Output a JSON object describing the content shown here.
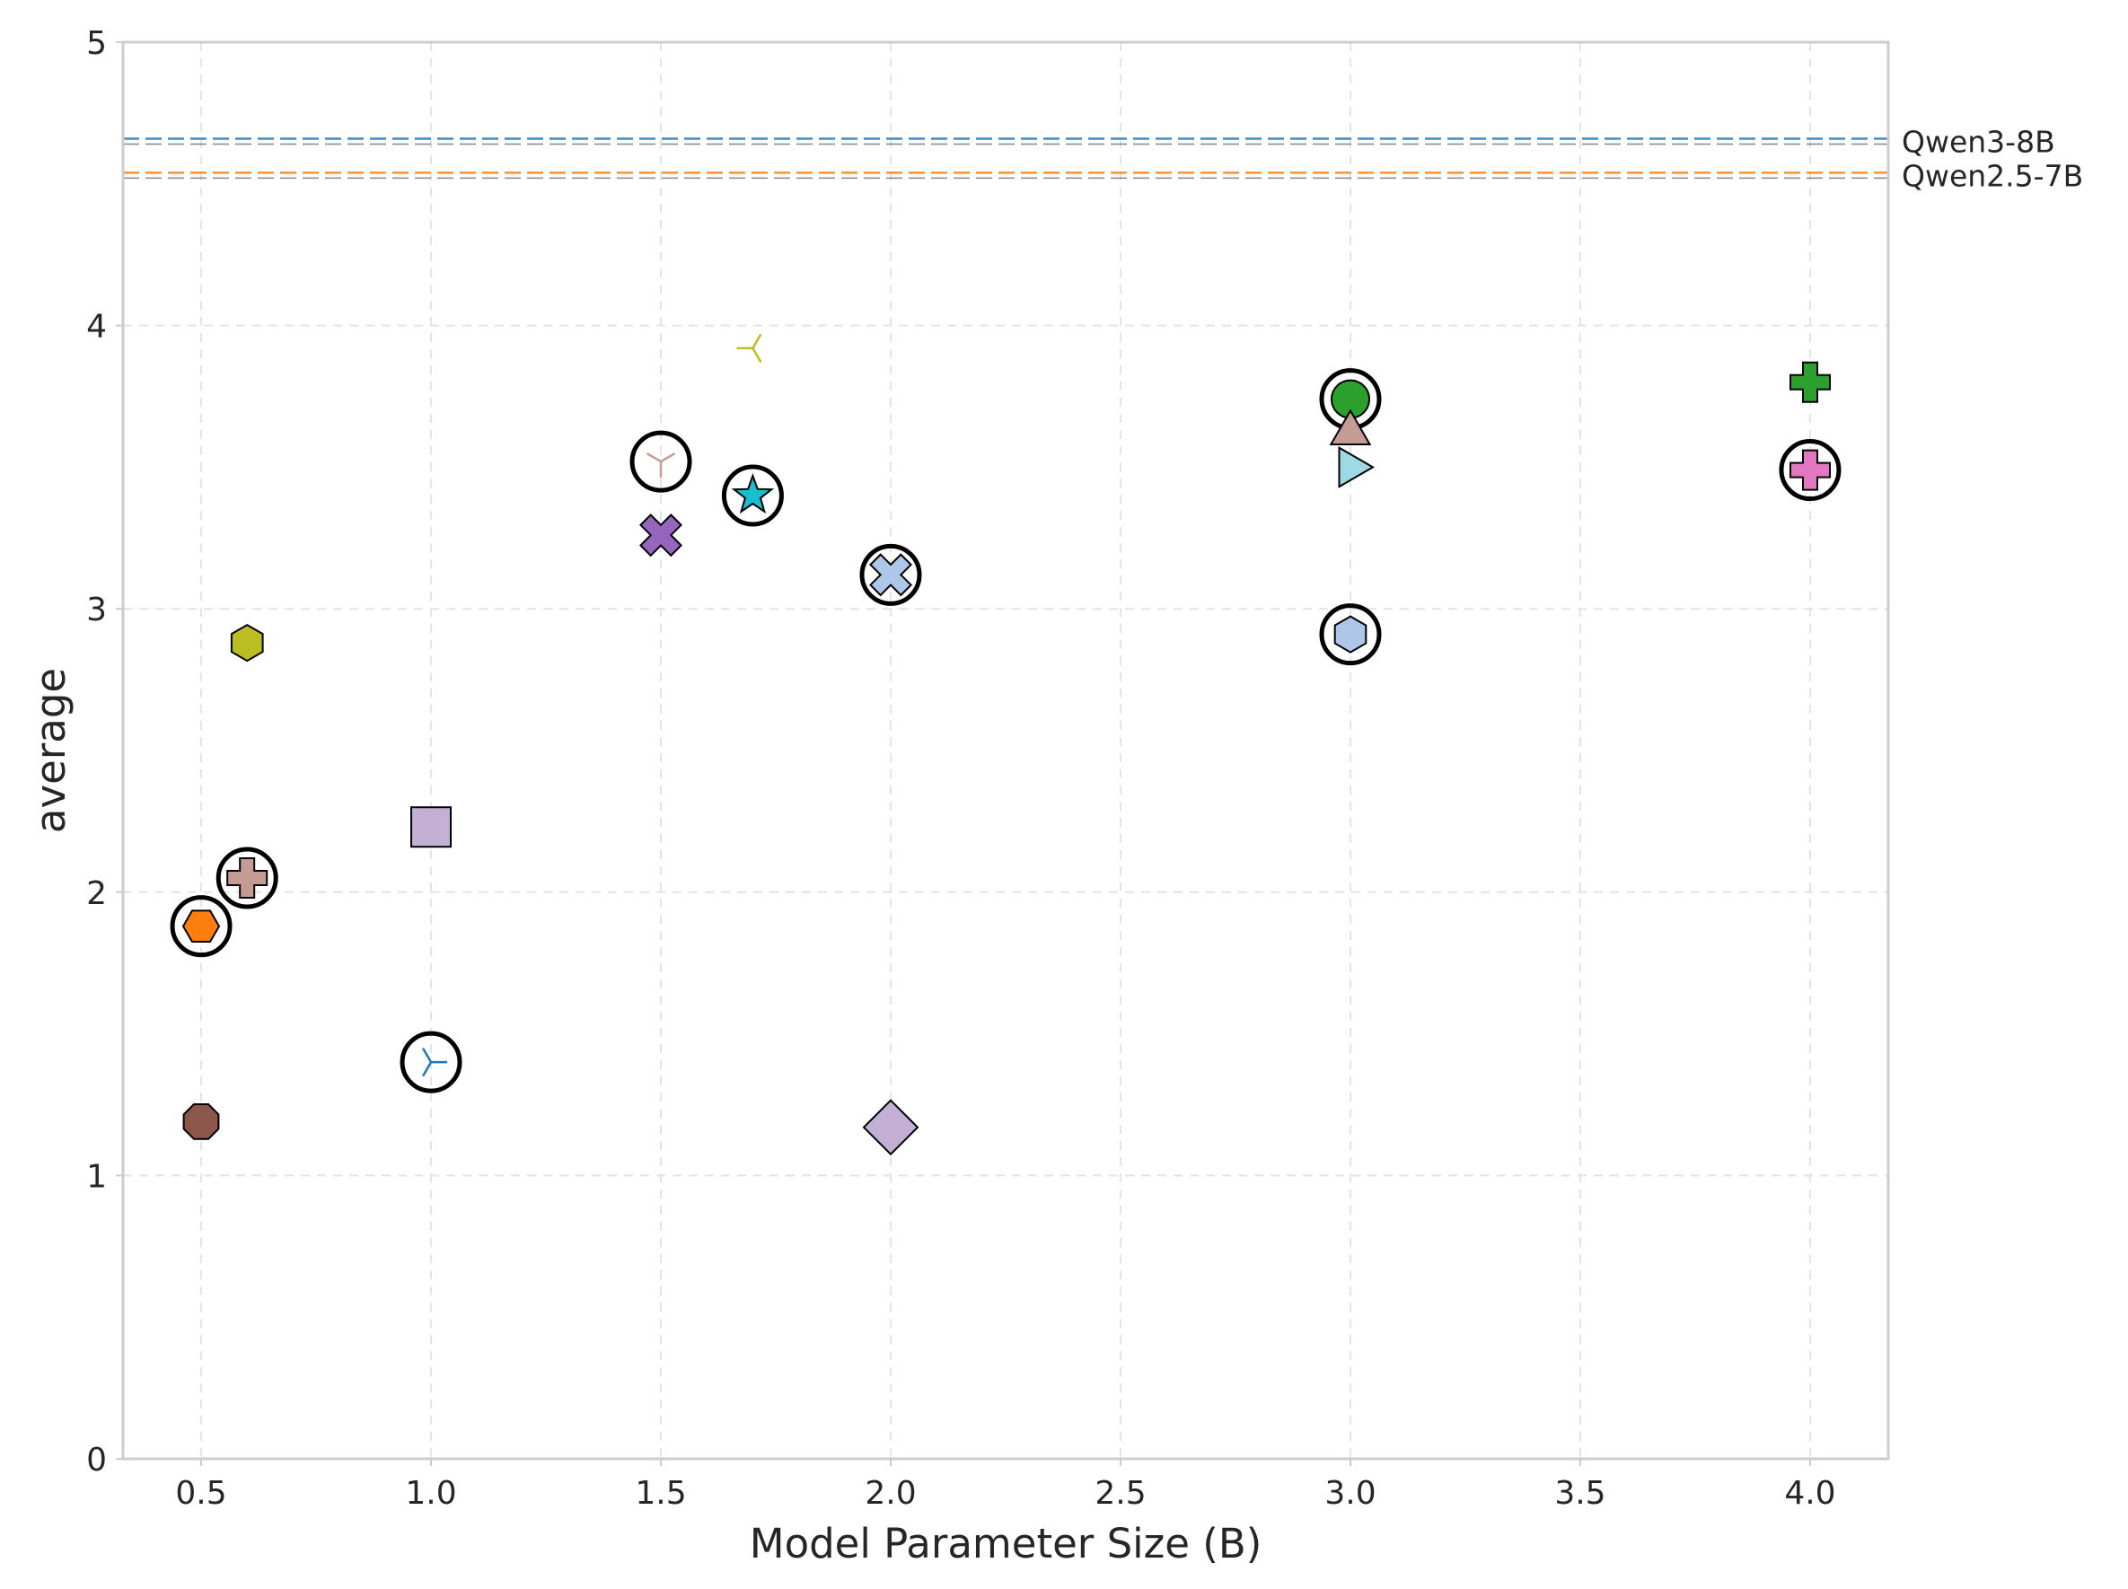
{
  "chart_data": {
    "type": "scatter",
    "xlabel": "Model Parameter Size (B)",
    "ylabel": "average",
    "xlim": [
      0.33,
      4.17
    ],
    "ylim": [
      0,
      5
    ],
    "xticks": [
      "0.5",
      "1.0",
      "1.5",
      "2.0",
      "2.5",
      "3.0",
      "3.5",
      "4.0"
    ],
    "yticks": [
      "0",
      "1",
      "2",
      "3",
      "4",
      "5"
    ],
    "grid": true,
    "reference_lines": [
      {
        "name": "Qwen3-8B",
        "y": 4.65,
        "color": "#1f77b4"
      },
      {
        "name": "Qwen2.5-7B",
        "y": 4.53,
        "color": "#ff7f0e"
      }
    ],
    "points": [
      {
        "x": 0.5,
        "y": 1.88,
        "marker": "hexagon2",
        "color": "#ff7f0e",
        "circled": true
      },
      {
        "x": 0.5,
        "y": 1.19,
        "marker": "octagon",
        "color": "#8c564b",
        "circled": false
      },
      {
        "x": 0.6,
        "y": 2.88,
        "marker": "hexagon",
        "color": "#bcbd22",
        "circled": false
      },
      {
        "x": 0.6,
        "y": 2.05,
        "marker": "plus",
        "color": "#c49c94",
        "circled": true
      },
      {
        "x": 1.0,
        "y": 2.23,
        "marker": "square",
        "color": "#c5b0d5",
        "circled": false
      },
      {
        "x": 1.0,
        "y": 1.4,
        "marker": "tri-right",
        "color": "#1f77b4",
        "circled": true
      },
      {
        "x": 1.5,
        "y": 3.52,
        "marker": "tri-down",
        "color": "#c49c94",
        "circled": true
      },
      {
        "x": 1.5,
        "y": 3.26,
        "marker": "x-filled",
        "color": "#9467bd",
        "circled": false
      },
      {
        "x": 1.7,
        "y": 3.92,
        "marker": "tri-left",
        "color": "#bcbd22",
        "circled": false
      },
      {
        "x": 1.7,
        "y": 3.4,
        "marker": "star",
        "color": "#17becf",
        "circled": true
      },
      {
        "x": 2.0,
        "y": 3.12,
        "marker": "x-filled",
        "color": "#aec7e8",
        "circled": true
      },
      {
        "x": 2.0,
        "y": 1.17,
        "marker": "diamond",
        "color": "#c5b0d5",
        "circled": false
      },
      {
        "x": 3.0,
        "y": 3.74,
        "marker": "circle",
        "color": "#2ca02c",
        "circled": true
      },
      {
        "x": 3.0,
        "y": 3.62,
        "marker": "triangle-up",
        "color": "#c49c94",
        "circled": false
      },
      {
        "x": 3.0,
        "y": 3.5,
        "marker": "triangle-right",
        "color": "#9edae5",
        "circled": false
      },
      {
        "x": 3.0,
        "y": 2.91,
        "marker": "hexagon",
        "color": "#aec7e8",
        "circled": true
      },
      {
        "x": 4.0,
        "y": 3.8,
        "marker": "plus",
        "color": "#2ca02c",
        "circled": false
      },
      {
        "x": 4.0,
        "y": 3.49,
        "marker": "plus",
        "color": "#e377c2",
        "circled": true
      }
    ]
  }
}
